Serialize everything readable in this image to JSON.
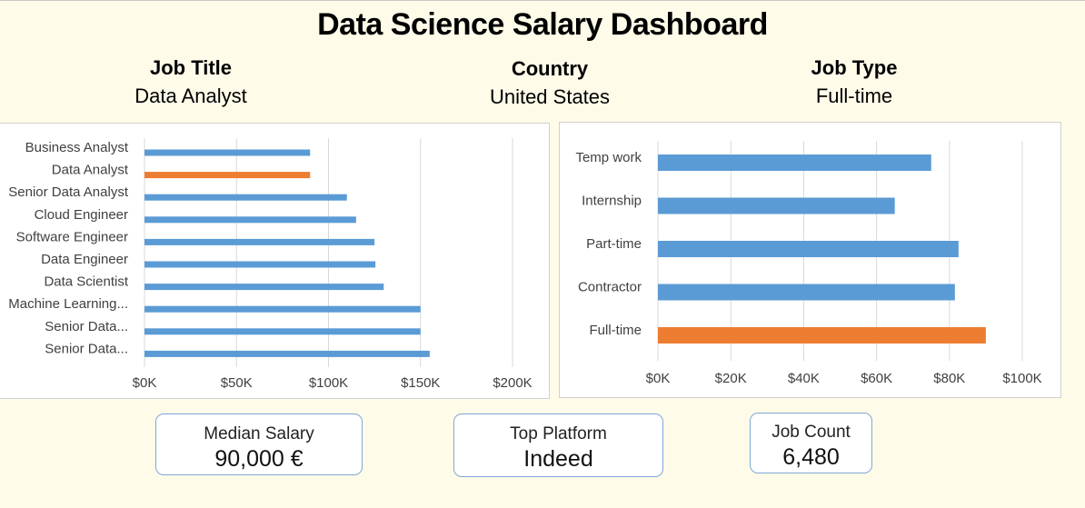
{
  "dashboard": {
    "title": "Data Science Salary Dashboard"
  },
  "filters": {
    "job_title_label": "Job Title",
    "job_title_value": "Data Analyst",
    "country_label": "Country",
    "country_value": "United States",
    "job_type_label": "Job Type",
    "job_type_value": "Full-time"
  },
  "kpis": {
    "median_label": "Median Salary",
    "median_value": "90,000 €",
    "platform_label": "Top Platform",
    "platform_value": "Indeed",
    "count_label": "Job Count",
    "count_value": "6,480"
  },
  "colors": {
    "bar": "#5b9bd5",
    "highlight": "#ed7d31",
    "grid": "#d9d9d9",
    "kpi_border": "#7fa7d6"
  },
  "chart_data": [
    {
      "type": "bar",
      "orientation": "horizontal",
      "categories": [
        "Business Analyst",
        "Data Analyst",
        "Senior Data Analyst",
        "Cloud Engineer",
        "Software Engineer",
        "Data Engineer",
        "Data Scientist",
        "Machine Learning...",
        "Senior Data...",
        "Senior Data..."
      ],
      "values": [
        90000,
        90000,
        110000,
        115000,
        125000,
        125500,
        130000,
        150000,
        150000,
        155000
      ],
      "highlight": "Data Analyst",
      "xlim": [
        0,
        200000
      ],
      "xticks": [
        0,
        50000,
        100000,
        150000,
        200000
      ],
      "xtick_labels": [
        "$0K",
        "$50K",
        "$100K",
        "$150K",
        "$200K"
      ],
      "grid": true,
      "legend": "none"
    },
    {
      "type": "bar",
      "orientation": "horizontal",
      "categories": [
        "Temp work",
        "Internship",
        "Part-time",
        "Contractor",
        "Full-time"
      ],
      "values": [
        75000,
        65000,
        82500,
        81500,
        90000
      ],
      "highlight": "Full-time",
      "xlim": [
        0,
        100000
      ],
      "xticks": [
        0,
        20000,
        40000,
        60000,
        80000,
        100000
      ],
      "xtick_labels": [
        "$0K",
        "$20K",
        "$40K",
        "$60K",
        "$80K",
        "$100K"
      ],
      "grid": true,
      "legend": "none"
    }
  ]
}
